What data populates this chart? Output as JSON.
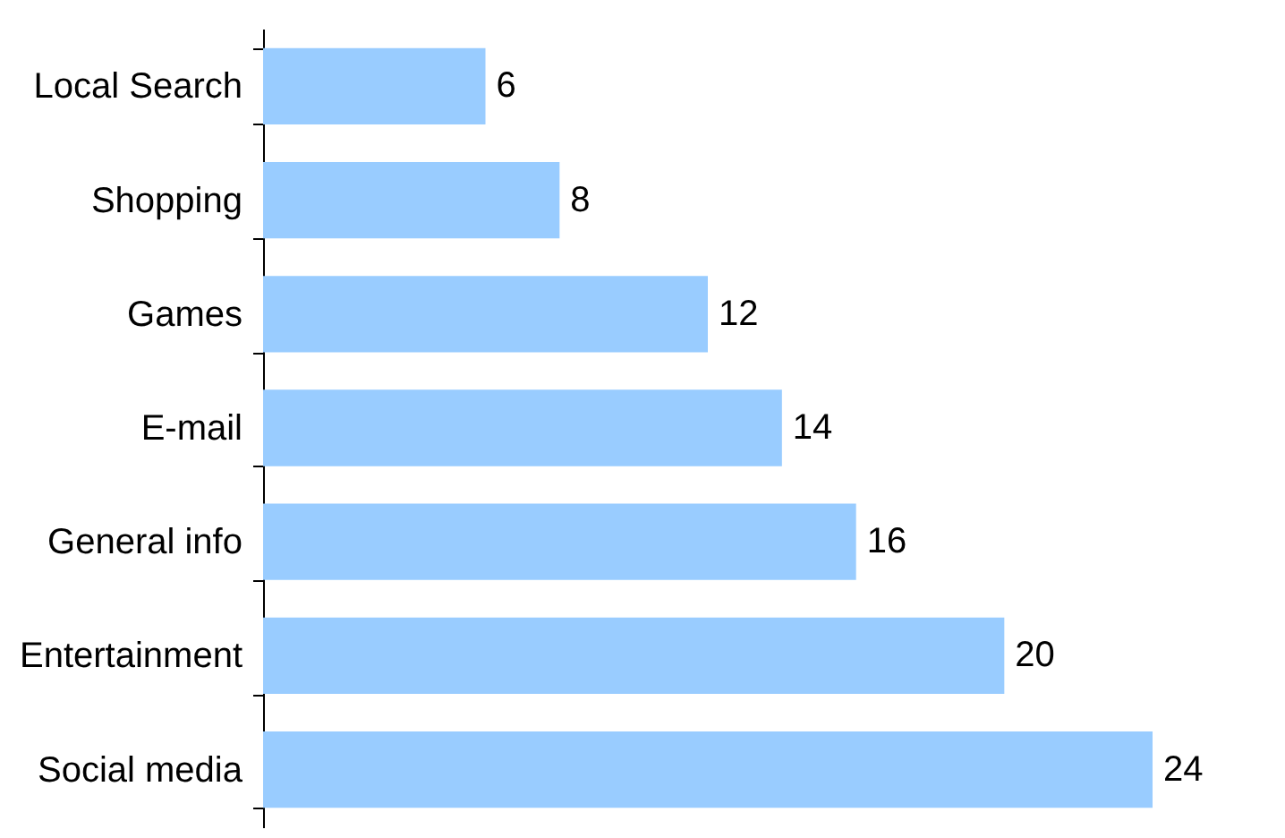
{
  "chart_data": {
    "type": "bar",
    "orientation": "horizontal",
    "categories": [
      "Local Search",
      "Shopping",
      "Games",
      "E-mail",
      "General info",
      "Entertainment",
      "Social media"
    ],
    "values": [
      6,
      8,
      12,
      14,
      16,
      20,
      24
    ],
    "color": "#99ccff",
    "data_labels": true,
    "grid": false,
    "tick_labels": "y"
  }
}
